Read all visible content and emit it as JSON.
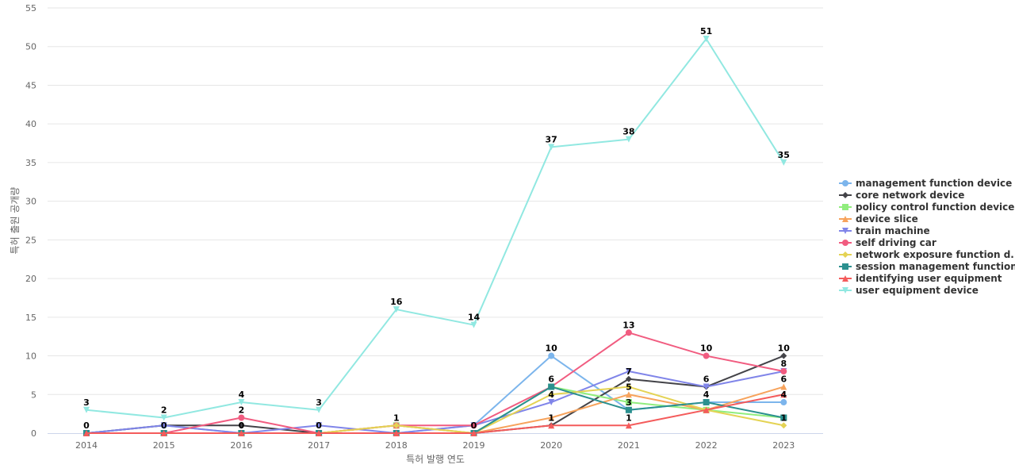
{
  "chart_data": {
    "type": "line",
    "xlabel": "특허 발행 연도",
    "ylabel": "특허 출원 공개량",
    "x": [
      "2014",
      "2015",
      "2016",
      "2017",
      "2018",
      "2019",
      "2020",
      "2021",
      "2022",
      "2023"
    ],
    "ylim": [
      0,
      55
    ],
    "yticks": [
      0,
      5,
      10,
      15,
      20,
      25,
      30,
      35,
      40,
      45,
      50,
      55
    ],
    "grid": true,
    "legend_position": "right",
    "series": [
      {
        "name": "management function device",
        "color": "#7cb5ec",
        "marker": "circle",
        "values": [
          0,
          1,
          0,
          0,
          0,
          1,
          10,
          3,
          4,
          4
        ]
      },
      {
        "name": "core network device",
        "color": "#434348",
        "marker": "diamond",
        "values": [
          0,
          1,
          1,
          0,
          0,
          0,
          1,
          7,
          6,
          10
        ]
      },
      {
        "name": "policy control function device",
        "color": "#90ed7d",
        "marker": "square",
        "values": [
          0,
          0,
          0,
          0,
          1,
          0,
          6,
          4,
          3,
          2
        ]
      },
      {
        "name": "device slice",
        "color": "#f7a35c",
        "marker": "triangle",
        "values": [
          0,
          0,
          0,
          0,
          1,
          0,
          2,
          5,
          3,
          6
        ]
      },
      {
        "name": "train machine",
        "color": "#8085e9",
        "marker": "triangle-down",
        "values": [
          0,
          1,
          0,
          1,
          0,
          1,
          4,
          8,
          6,
          8
        ]
      },
      {
        "name": "self driving car",
        "color": "#f15c80",
        "marker": "circle",
        "values": [
          0,
          0,
          2,
          0,
          1,
          1,
          6,
          13,
          10,
          8
        ]
      },
      {
        "name": "network exposure function d...",
        "color": "#e4d354",
        "marker": "diamond",
        "values": [
          0,
          0,
          0,
          0,
          1,
          0,
          5,
          6,
          3,
          1
        ]
      },
      {
        "name": "session management function...",
        "color": "#2b908f",
        "marker": "square",
        "values": [
          0,
          0,
          0,
          0,
          0,
          0,
          6,
          3,
          4,
          2
        ]
      },
      {
        "name": "identifying user equipment",
        "color": "#f45b5b",
        "marker": "triangle",
        "values": [
          0,
          0,
          0,
          0,
          0,
          0,
          1,
          1,
          3,
          5
        ]
      },
      {
        "name": "user equipment device",
        "color": "#91e8e1",
        "marker": "triangle-down",
        "values": [
          3,
          2,
          4,
          3,
          16,
          14,
          37,
          38,
          51,
          35
        ]
      }
    ],
    "data_labels": [
      {
        "x": "2014",
        "value": 3
      },
      {
        "x": "2014",
        "value": 0
      },
      {
        "x": "2015",
        "value": 2
      },
      {
        "x": "2015",
        "value": 0
      },
      {
        "x": "2016",
        "value": 4
      },
      {
        "x": "2016",
        "value": 2
      },
      {
        "x": "2016",
        "value": 0
      },
      {
        "x": "2017",
        "value": 3
      },
      {
        "x": "2017",
        "value": 0
      },
      {
        "x": "2018",
        "value": 16
      },
      {
        "x": "2018",
        "value": 1
      },
      {
        "x": "2019",
        "value": 14
      },
      {
        "x": "2019",
        "value": 0
      },
      {
        "x": "2020",
        "value": 37
      },
      {
        "x": "2020",
        "value": 10
      },
      {
        "x": "2020",
        "value": 6
      },
      {
        "x": "2020",
        "value": 4
      },
      {
        "x": "2020",
        "value": 1
      },
      {
        "x": "2021",
        "value": 38
      },
      {
        "x": "2021",
        "value": 13
      },
      {
        "x": "2021",
        "value": 7
      },
      {
        "x": "2021",
        "value": 5
      },
      {
        "x": "2021",
        "value": 3
      },
      {
        "x": "2021",
        "value": 1
      },
      {
        "x": "2022",
        "value": 51
      },
      {
        "x": "2022",
        "value": 10
      },
      {
        "x": "2022",
        "value": 6
      },
      {
        "x": "2022",
        "value": 4
      },
      {
        "x": "2023",
        "value": 35
      },
      {
        "x": "2023",
        "value": 10
      },
      {
        "x": "2023",
        "value": 8
      },
      {
        "x": "2023",
        "value": 6
      },
      {
        "x": "2023",
        "value": 4
      },
      {
        "x": "2023",
        "value": 1
      }
    ]
  }
}
